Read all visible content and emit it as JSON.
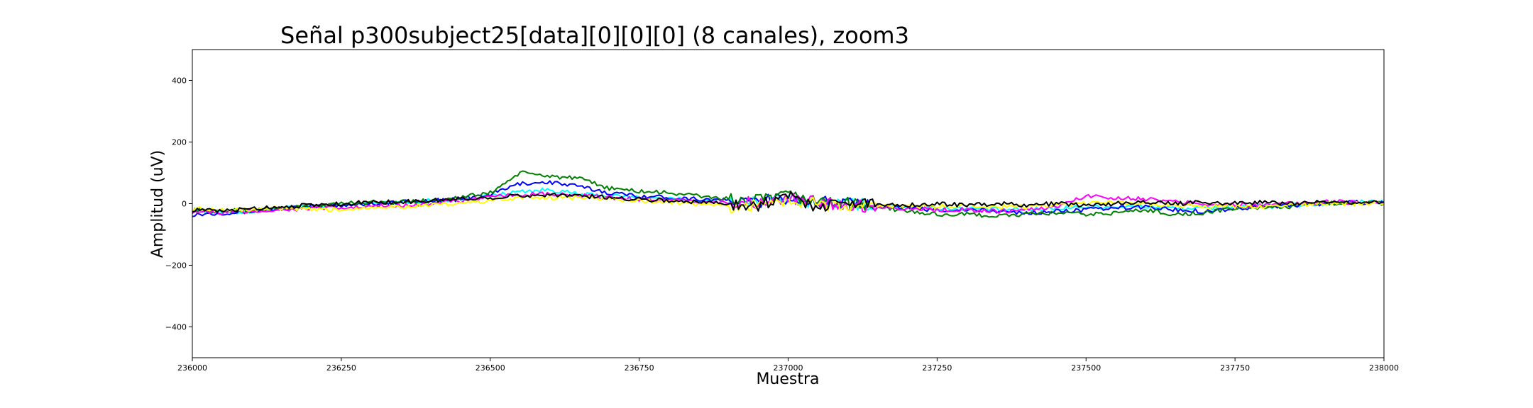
{
  "chart_data": {
    "type": "line",
    "title": "Señal p300subject25[data][0][0][0] (8 canales), zoom3",
    "xlabel": "Muestra",
    "ylabel": "Amplitud (uV)",
    "xlim": [
      236000,
      238000
    ],
    "ylim": [
      -500,
      500
    ],
    "xticks": [
      236000,
      236250,
      236500,
      236750,
      237000,
      237250,
      237500,
      237750,
      238000
    ],
    "xtick_labels": [
      "236000",
      "236250",
      "236500",
      "236750",
      "237000",
      "237250",
      "237500",
      "237750",
      "238000"
    ],
    "yticks": [
      400,
      200,
      0,
      -200,
      -400
    ],
    "ytick_labels": [
      "400",
      "200",
      "0",
      "−200",
      "−400"
    ],
    "grid": false,
    "series": [
      {
        "color": "#00ffff",
        "x": [
          236000,
          236050,
          236100,
          236150,
          236200,
          236250,
          236300,
          236350,
          236400,
          236450,
          236500,
          236550,
          236600,
          236650,
          236700,
          236750,
          236800,
          236850,
          236900,
          236950,
          237000,
          237050,
          237100,
          237150,
          237200,
          237250,
          237300,
          237350,
          237400,
          237450,
          237500,
          237550,
          237600,
          237650,
          237700,
          237750,
          237800,
          237850,
          237900,
          237950,
          238000
        ],
        "y": [
          -20,
          -30,
          -25,
          -15,
          -10,
          -5,
          0,
          5,
          10,
          15,
          25,
          40,
          45,
          30,
          25,
          20,
          15,
          10,
          5,
          5,
          15,
          5,
          0,
          -5,
          -10,
          -15,
          -15,
          -20,
          -20,
          -15,
          -10,
          -10,
          -10,
          -15,
          -15,
          -10,
          -10,
          -5,
          0,
          5,
          5
        ]
      },
      {
        "color": "#0000ff",
        "x": [
          236000,
          236050,
          236100,
          236150,
          236200,
          236250,
          236300,
          236350,
          236400,
          236450,
          236500,
          236550,
          236600,
          236650,
          236700,
          236750,
          236800,
          236850,
          236900,
          236950,
          237000,
          237050,
          237100,
          237150,
          237200,
          237250,
          237300,
          237350,
          237400,
          237450,
          237500,
          237550,
          237600,
          237650,
          237700,
          237750,
          237800,
          237850,
          237900,
          237950,
          238000
        ],
        "y": [
          -35,
          -30,
          -25,
          -15,
          -10,
          -5,
          0,
          5,
          10,
          15,
          30,
          65,
          70,
          55,
          35,
          25,
          20,
          15,
          10,
          5,
          20,
          5,
          0,
          -5,
          -15,
          -20,
          -20,
          -25,
          -30,
          -25,
          -20,
          -15,
          -10,
          -20,
          -25,
          -15,
          -10,
          -5,
          0,
          5,
          0
        ]
      },
      {
        "color": "#008000",
        "x": [
          236000,
          236050,
          236100,
          236150,
          236200,
          236250,
          236300,
          236350,
          236400,
          236450,
          236500,
          236550,
          236600,
          236650,
          236700,
          236750,
          236800,
          236850,
          236900,
          236950,
          237000,
          237050,
          237100,
          237150,
          237200,
          237250,
          237300,
          237350,
          237400,
          237450,
          237500,
          237550,
          237600,
          237650,
          237700,
          237750,
          237800,
          237850,
          237900,
          237950,
          238000
        ],
        "y": [
          -20,
          -25,
          -20,
          -15,
          -10,
          0,
          5,
          5,
          10,
          20,
          35,
          100,
          90,
          80,
          50,
          40,
          35,
          25,
          15,
          10,
          25,
          10,
          0,
          -10,
          -25,
          -35,
          -35,
          -40,
          -35,
          -30,
          -35,
          -30,
          -20,
          -35,
          -30,
          -15,
          -10,
          -10,
          0,
          5,
          0
        ]
      },
      {
        "color": "#ff00ff",
        "x": [
          236000,
          236050,
          236100,
          236150,
          236200,
          236250,
          236300,
          236350,
          236400,
          236450,
          236500,
          236550,
          236600,
          236650,
          236700,
          236750,
          236800,
          236850,
          236900,
          236950,
          237000,
          237050,
          237100,
          237150,
          237200,
          237250,
          237300,
          237350,
          237400,
          237450,
          237500,
          237550,
          237600,
          237650,
          237700,
          237750,
          237800,
          237850,
          237900,
          237950,
          238000
        ],
        "y": [
          -25,
          -30,
          -25,
          -20,
          -15,
          -15,
          -10,
          -5,
          0,
          10,
          20,
          30,
          30,
          25,
          20,
          15,
          10,
          5,
          5,
          0,
          15,
          5,
          -5,
          -10,
          -15,
          -20,
          -20,
          -25,
          -20,
          -10,
          25,
          20,
          15,
          5,
          0,
          -5,
          -5,
          0,
          5,
          5,
          5
        ]
      },
      {
        "color": "#ffff00",
        "x": [
          236000,
          236050,
          236100,
          236150,
          236200,
          236250,
          236300,
          236350,
          236400,
          236450,
          236500,
          236550,
          236600,
          236650,
          236700,
          236750,
          236800,
          236850,
          236900,
          236950,
          237000,
          237050,
          237100,
          237150,
          237200,
          237250,
          237300,
          237350,
          237400,
          237450,
          237500,
          237550,
          237600,
          237650,
          237700,
          237750,
          237800,
          237850,
          237900,
          237950,
          238000
        ],
        "y": [
          -15,
          -20,
          -20,
          -15,
          -20,
          -20,
          -10,
          -10,
          -5,
          0,
          10,
          20,
          20,
          20,
          15,
          10,
          5,
          0,
          -10,
          -5,
          10,
          0,
          -10,
          -5,
          -10,
          -10,
          -5,
          -10,
          -10,
          -5,
          0,
          5,
          0,
          -5,
          -10,
          -10,
          -10,
          -5,
          0,
          0,
          0
        ]
      },
      {
        "color": "#000000",
        "x": [
          236000,
          236050,
          236100,
          236150,
          236200,
          236250,
          236300,
          236350,
          236400,
          236450,
          236500,
          236550,
          236600,
          236650,
          236700,
          236750,
          236800,
          236850,
          236900,
          236950,
          237000,
          237050,
          237100,
          237150,
          237200,
          237250,
          237300,
          237350,
          237400,
          237450,
          237500,
          237550,
          237600,
          237650,
          237700,
          237750,
          237800,
          237850,
          237900,
          237950,
          238000
        ],
        "y": [
          -20,
          -25,
          -15,
          -10,
          -5,
          0,
          5,
          5,
          10,
          15,
          20,
          25,
          30,
          25,
          20,
          15,
          10,
          5,
          0,
          -5,
          25,
          -10,
          5,
          0,
          -5,
          0,
          -5,
          0,
          -5,
          0,
          -5,
          0,
          5,
          0,
          5,
          0,
          5,
          0,
          5,
          5,
          5
        ]
      }
    ]
  }
}
